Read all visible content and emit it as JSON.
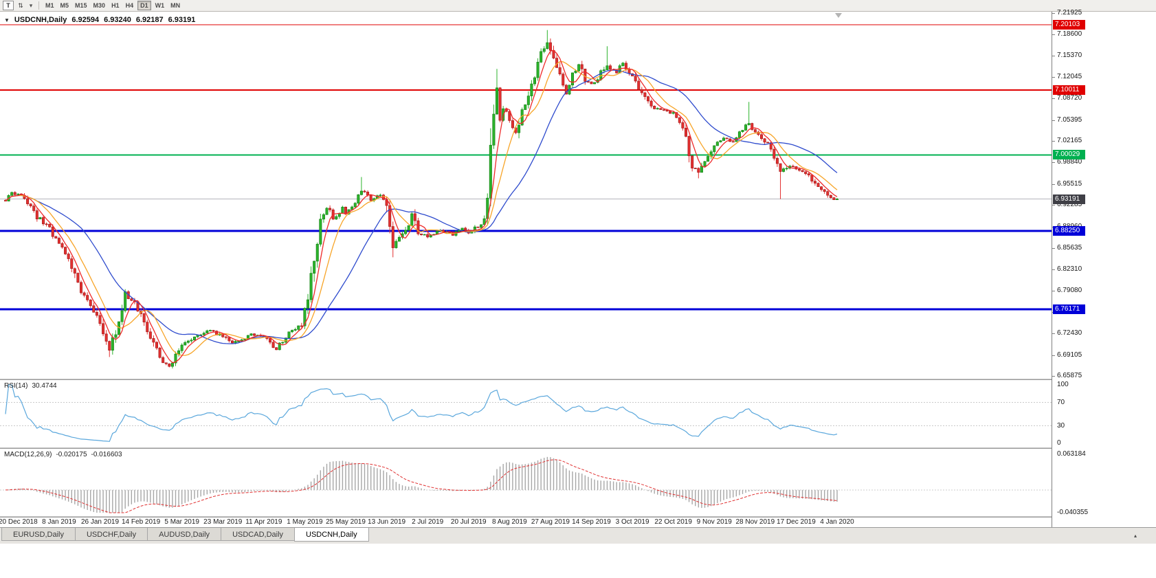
{
  "icons": {
    "collapse": "▼",
    "caret": "▾",
    "tab_scroll": "▴"
  },
  "toolbar": {
    "buttons": [
      {
        "label": "T"
      },
      {
        "label": "⇅"
      }
    ],
    "caret": "▾",
    "timeframes": [
      "M1",
      "M5",
      "M15",
      "M30",
      "H1",
      "H4",
      "D1",
      "W1",
      "MN"
    ],
    "active_timeframe": "D1"
  },
  "chart": {
    "title": "USDCNH,Daily",
    "open": "6.92594",
    "high": "6.93240",
    "low": "6.92187",
    "close": "6.93191"
  },
  "chart_data": {
    "type": "candlestick",
    "symbol": "USDCNH",
    "period": "Daily",
    "ohlc": {
      "open": 6.92594,
      "high": 6.9324,
      "low": 6.92187,
      "close": 6.93191
    },
    "last_close": 6.93191,
    "bars_total": 265,
    "price_axis": {
      "max": 7.21925,
      "min": 6.65875,
      "ticks": [
        "7.21925",
        "7.18600",
        "7.15370",
        "7.12045",
        "7.08720",
        "7.05395",
        "7.02165",
        "6.98840",
        "6.95515",
        "6.92285",
        "6.88960",
        "6.85635",
        "6.82310",
        "6.79080",
        "6.75755",
        "6.72430",
        "6.69105",
        "6.65875"
      ]
    },
    "x_axis": {
      "labels": [
        "20 Dec 2018",
        "8 Jan 2019",
        "26 Jan 2019",
        "14 Feb 2019",
        "5 Mar 2019",
        "23 Mar 2019",
        "11 Apr 2019",
        "1 May 2019",
        "25 May 2019",
        "13 Jun 2019",
        "2 Jul 2019",
        "20 Jul 2019",
        "8 Aug 2019",
        "27 Aug 2019",
        "14 Sep 2019",
        "3 Oct 2019",
        "22 Oct 2019",
        "9 Nov 2019",
        "28 Nov 2019",
        "17 Dec 2019",
        "4 Jan 2020"
      ],
      "label_bars": [
        4,
        17,
        30,
        43,
        56,
        69,
        82,
        95,
        108,
        121,
        134,
        147,
        160,
        173,
        186,
        199,
        212,
        225,
        238,
        251,
        264
      ]
    },
    "hlines": [
      {
        "price": 7.20103,
        "label": "7.20103",
        "color": "#e00000",
        "width": 1
      },
      {
        "price": 7.10011,
        "label": "7.10011",
        "color": "#e00000",
        "width": 2
      },
      {
        "price": 7.00029,
        "label": "7.00029",
        "color": "#00b050",
        "width": 2
      },
      {
        "price": 6.8825,
        "label": "6.88250",
        "color": "#0000d8",
        "width": 3
      },
      {
        "price": 6.76171,
        "label": "6.76171",
        "color": "#0000d8",
        "width": 3
      }
    ],
    "bid_line": {
      "price": 6.93191,
      "label": "6.93191",
      "badge_color": "#3f3f46",
      "line_color": "#b4b4bc"
    },
    "moving_averages": [
      {
        "period": 5,
        "color": "#ee2929"
      },
      {
        "period": 10,
        "color": "#f7a427"
      },
      {
        "period": 25,
        "color": "#2e4bcd"
      }
    ],
    "candle_colors": {
      "up_fill": "#2cb32c",
      "up_stroke": "#0d7a0d",
      "down_fill": "#e23030",
      "down_stroke": "#9c1414"
    },
    "close_waypoints": [
      [
        0,
        6.93
      ],
      [
        2,
        6.942
      ],
      [
        6,
        6.935
      ],
      [
        10,
        6.905
      ],
      [
        14,
        6.885
      ],
      [
        17,
        6.862
      ],
      [
        20,
        6.838
      ],
      [
        23,
        6.8
      ],
      [
        27,
        6.765
      ],
      [
        30,
        6.74
      ],
      [
        33,
        6.7
      ],
      [
        36,
        6.745
      ],
      [
        38,
        6.785
      ],
      [
        41,
        6.77
      ],
      [
        43,
        6.752
      ],
      [
        46,
        6.722
      ],
      [
        49,
        6.685
      ],
      [
        52,
        6.675
      ],
      [
        56,
        6.705
      ],
      [
        60,
        6.718
      ],
      [
        64,
        6.73
      ],
      [
        69,
        6.72
      ],
      [
        72,
        6.708
      ],
      [
        75,
        6.715
      ],
      [
        78,
        6.722
      ],
      [
        82,
        6.72
      ],
      [
        86,
        6.7
      ],
      [
        90,
        6.725
      ],
      [
        94,
        6.737
      ],
      [
        96,
        6.775
      ],
      [
        98,
        6.84
      ],
      [
        100,
        6.895
      ],
      [
        102,
        6.92
      ],
      [
        104,
        6.9
      ],
      [
        107,
        6.918
      ],
      [
        108,
        6.91
      ],
      [
        111,
        6.928
      ],
      [
        113,
        6.945
      ],
      [
        116,
        6.93
      ],
      [
        119,
        6.938
      ],
      [
        121,
        6.925
      ],
      [
        123,
        6.858
      ],
      [
        125,
        6.872
      ],
      [
        127,
        6.885
      ],
      [
        129,
        6.908
      ],
      [
        131,
        6.88
      ],
      [
        134,
        6.875
      ],
      [
        138,
        6.882
      ],
      [
        142,
        6.878
      ],
      [
        145,
        6.886
      ],
      [
        147,
        6.88
      ],
      [
        150,
        6.89
      ],
      [
        152,
        6.898
      ],
      [
        154,
        7.03
      ],
      [
        155,
        7.078
      ],
      [
        156,
        7.098
      ],
      [
        157,
        7.052
      ],
      [
        158,
        7.072
      ],
      [
        160,
        7.058
      ],
      [
        162,
        7.035
      ],
      [
        164,
        7.065
      ],
      [
        166,
        7.095
      ],
      [
        168,
        7.125
      ],
      [
        170,
        7.155
      ],
      [
        172,
        7.172
      ],
      [
        174,
        7.15
      ],
      [
        176,
        7.118
      ],
      [
        178,
        7.095
      ],
      [
        180,
        7.125
      ],
      [
        182,
        7.14
      ],
      [
        184,
        7.118
      ],
      [
        186,
        7.108
      ],
      [
        188,
        7.12
      ],
      [
        191,
        7.14
      ],
      [
        194,
        7.125
      ],
      [
        196,
        7.142
      ],
      [
        199,
        7.12
      ],
      [
        202,
        7.095
      ],
      [
        205,
        7.075
      ],
      [
        208,
        7.068
      ],
      [
        212,
        7.065
      ],
      [
        215,
        7.045
      ],
      [
        218,
        6.985
      ],
      [
        220,
        6.975
      ],
      [
        222,
        6.995
      ],
      [
        224,
        7.008
      ],
      [
        225,
        7.015
      ],
      [
        228,
        7.025
      ],
      [
        231,
        7.022
      ],
      [
        234,
        7.04
      ],
      [
        236,
        7.048
      ],
      [
        238,
        7.035
      ],
      [
        241,
        7.022
      ],
      [
        244,
        7.0
      ],
      [
        246,
        6.975
      ],
      [
        249,
        6.985
      ],
      [
        251,
        6.98
      ],
      [
        254,
        6.972
      ],
      [
        257,
        6.958
      ],
      [
        260,
        6.942
      ],
      [
        262,
        6.932
      ],
      [
        264,
        6.93191
      ]
    ],
    "wick_events": [
      {
        "bar": 33,
        "low": 6.688
      },
      {
        "bar": 52,
        "low": 6.672
      },
      {
        "bar": 113,
        "high": 6.966
      },
      {
        "bar": 123,
        "low": 6.842
      },
      {
        "bar": 156,
        "high": 7.133
      },
      {
        "bar": 172,
        "high": 7.193
      },
      {
        "bar": 191,
        "high": 7.168
      },
      {
        "bar": 220,
        "low": 6.964
      },
      {
        "bar": 236,
        "high": 7.082
      },
      {
        "bar": 246,
        "low": 6.932
      }
    ],
    "rsi": {
      "period_label": "RSI(14)",
      "value_label": "30.4744",
      "color": "#5aa7dc",
      "levels": [
        {
          "v": 100,
          "label": "100"
        },
        {
          "v": 70,
          "label": "70"
        },
        {
          "v": 30,
          "label": "30"
        },
        {
          "v": 0,
          "label": "0"
        }
      ]
    },
    "macd": {
      "label": "MACD(12,26,9)",
      "macd_value": "-0.020175",
      "signal_value": "-0.016603",
      "hist_color": "#a6a6a6",
      "signal_color": "#e03030",
      "axis_max": 0.063184,
      "axis_min": -0.040355,
      "tick_labels": [
        "0.063184",
        "-0.040355"
      ]
    }
  },
  "tabs": [
    {
      "label": "EURUSD,Daily",
      "active": false
    },
    {
      "label": "USDCHF,Daily",
      "active": false
    },
    {
      "label": "AUDUSD,Daily",
      "active": false
    },
    {
      "label": "USDCAD,Daily",
      "active": false
    },
    {
      "label": "USDCNH,Daily",
      "active": true
    }
  ]
}
